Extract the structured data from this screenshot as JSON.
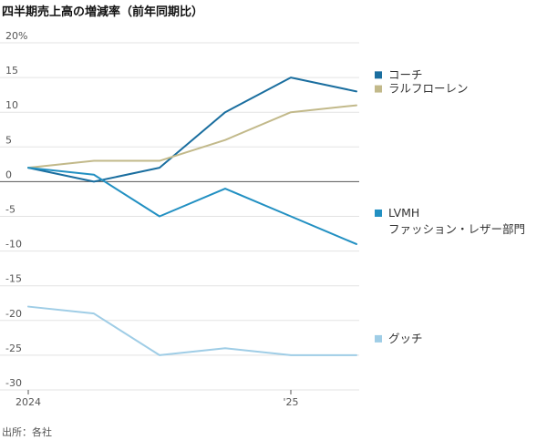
{
  "chart_data": {
    "type": "line",
    "title": "四半期売上高の増減率（前年同期比）",
    "source": "出所：各社",
    "ylim": [
      -30,
      20
    ],
    "yticks": [
      20,
      15,
      10,
      5,
      0,
      -5,
      -10,
      -15,
      -20,
      -25,
      -30
    ],
    "ytick_labels": [
      "20%",
      "15",
      "10",
      "5",
      "0",
      "-5",
      "-10",
      "-15",
      "-20",
      "-25",
      "-30"
    ],
    "x": [
      0,
      1,
      2,
      3,
      4,
      5
    ],
    "xtick_labels": [
      {
        "x": 0,
        "label": "2024"
      },
      {
        "x": 4,
        "label": "'25"
      }
    ],
    "series": [
      {
        "name": "コーチ",
        "label_lines": [
          "コーチ"
        ],
        "color": "#1a6e9f",
        "values": [
          2,
          0,
          2,
          10,
          15,
          13
        ]
      },
      {
        "name": "ラルフローレン",
        "label_lines": [
          "ラルフローレン"
        ],
        "color": "#c2b98a",
        "values": [
          2,
          3,
          3,
          6,
          10,
          11
        ]
      },
      {
        "name": "LVMH ファッション・レザー部門",
        "label_lines": [
          "LVMH",
          "ファッション・レザー部門"
        ],
        "color": "#2290c2",
        "values": [
          2,
          1,
          -5,
          -1,
          -5,
          -9
        ]
      },
      {
        "name": "グッチ",
        "label_lines": [
          "グッチ"
        ],
        "color": "#9fcde6",
        "values": [
          -18,
          -19,
          -25,
          -24,
          -25,
          -25
        ]
      }
    ]
  }
}
